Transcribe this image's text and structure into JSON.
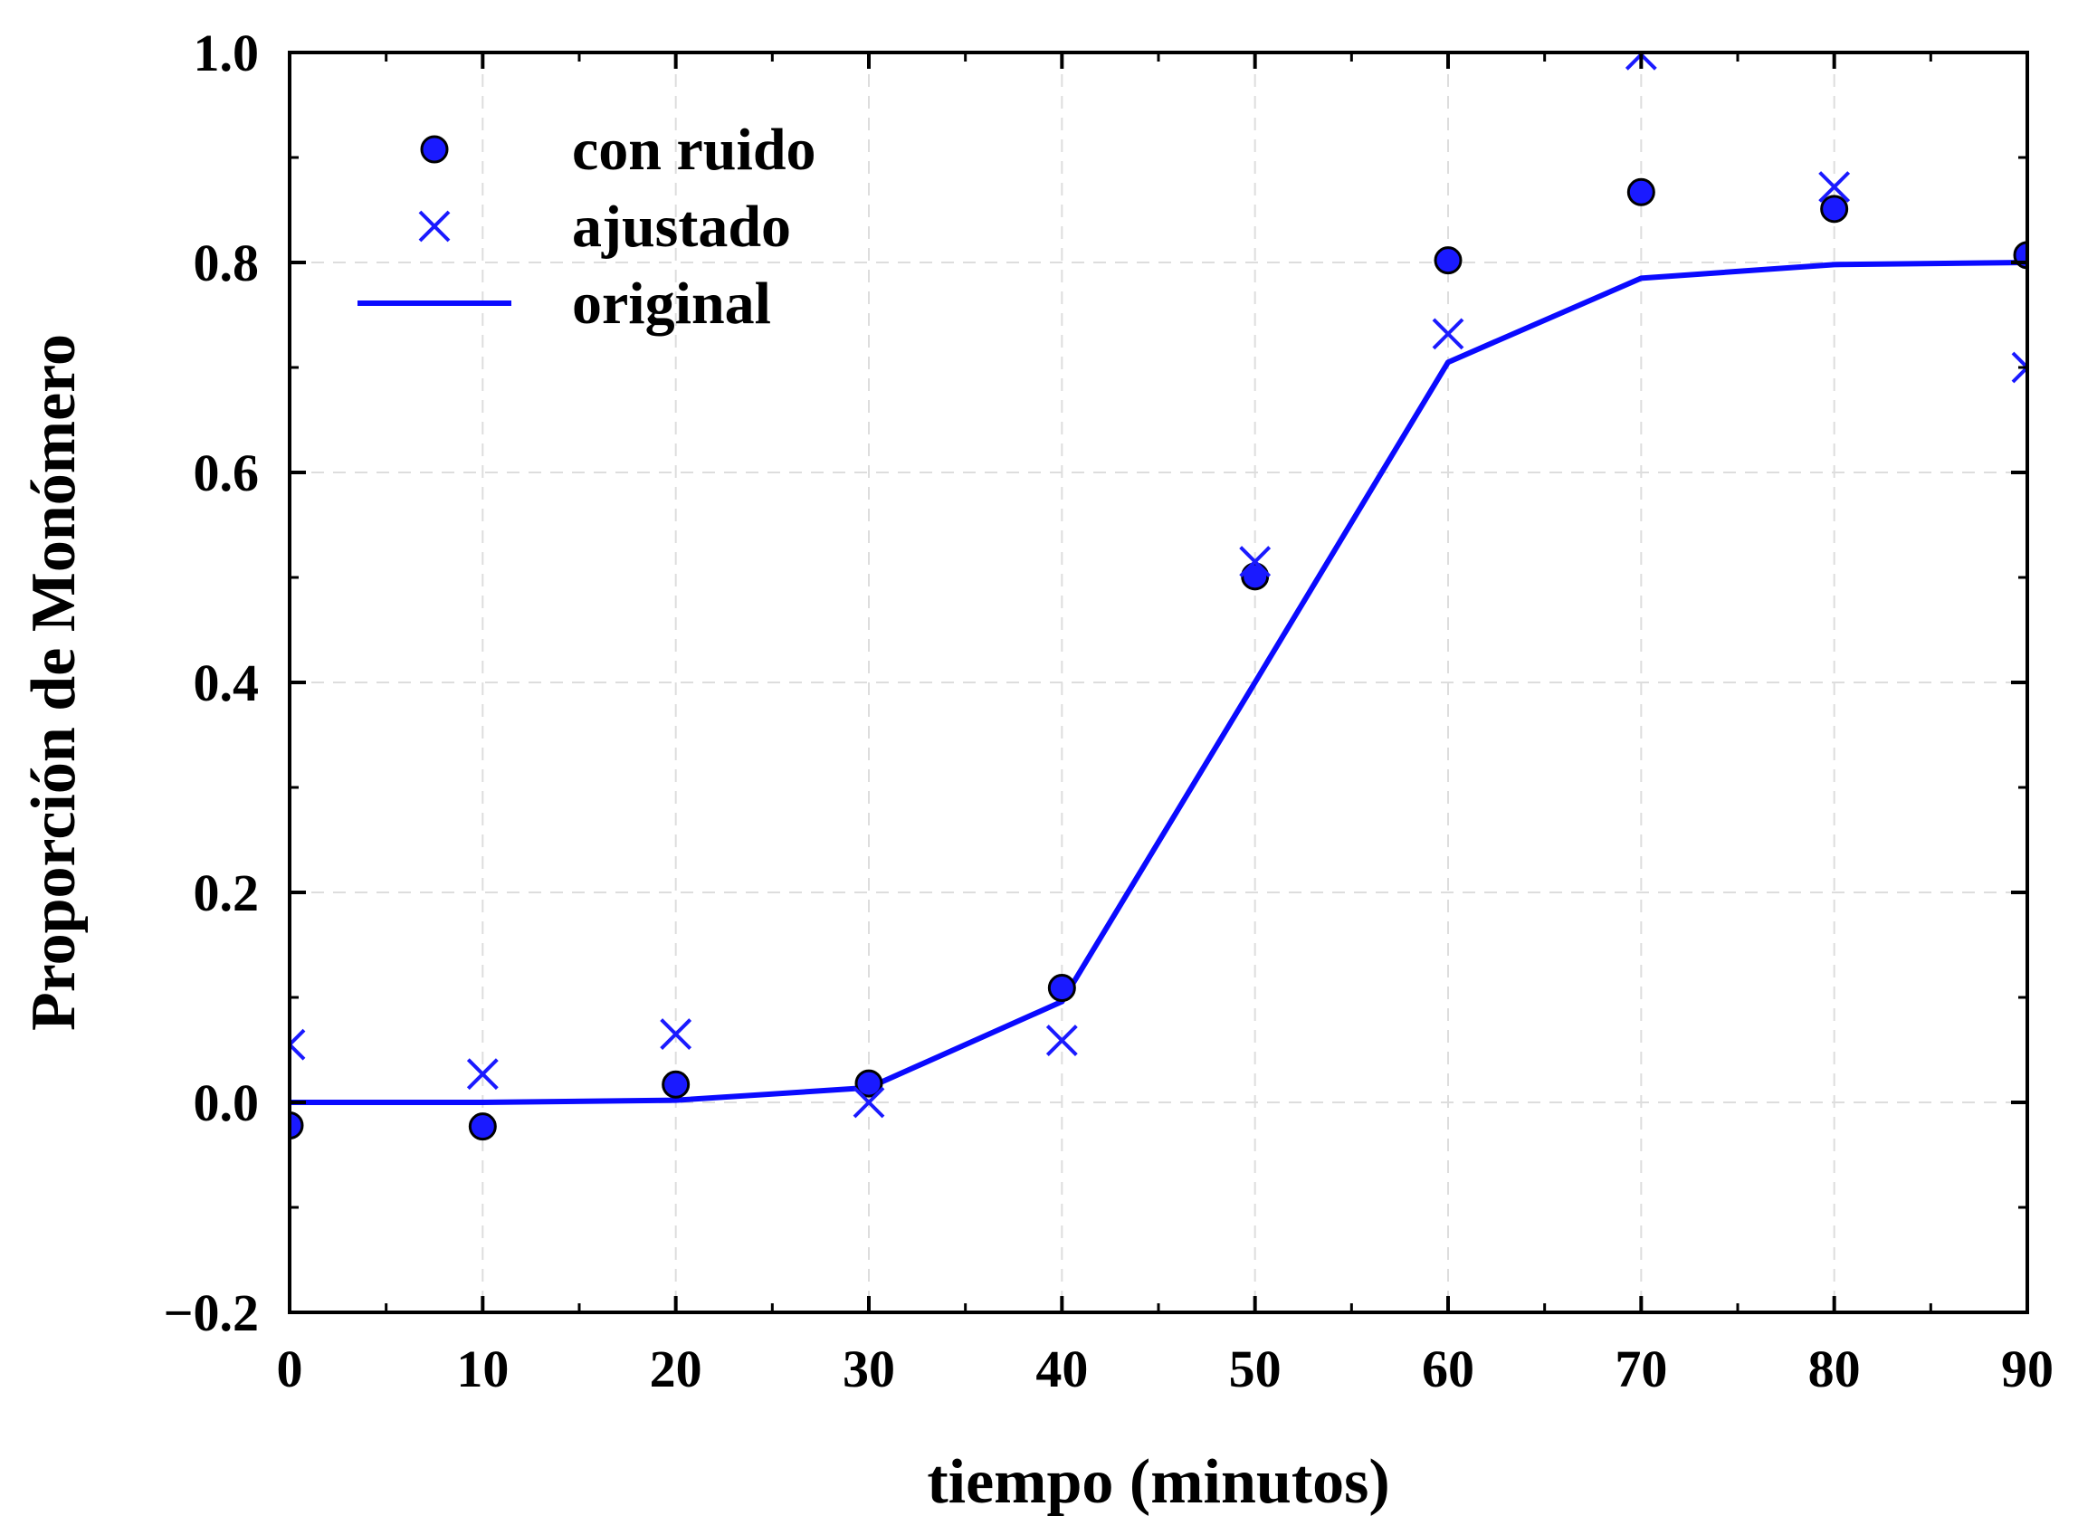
{
  "chart_data": {
    "type": "line",
    "xlabel": "tiempo (minutos)",
    "ylabel": "Proporción de Monómero",
    "xlim": [
      0,
      90
    ],
    "ylim": [
      -0.2,
      1.0
    ],
    "xticks": [
      0,
      10,
      20,
      30,
      40,
      50,
      60,
      70,
      80,
      90
    ],
    "xtick_labels": [
      "0",
      "10",
      "20",
      "30",
      "40",
      "50",
      "60",
      "70",
      "80",
      "90"
    ],
    "yticks": [
      -0.2,
      0.0,
      0.2,
      0.4,
      0.6,
      0.8,
      1.0
    ],
    "ytick_labels": [
      "−0.2",
      "0.0",
      "0.2",
      "0.4",
      "0.6",
      "0.8",
      "1.0"
    ],
    "grid": true,
    "legend_position": "top-left",
    "series": [
      {
        "name": "con ruido",
        "marker": "circle",
        "color": "#1a1aff",
        "x": [
          0,
          10,
          20,
          30,
          40,
          50,
          60,
          70,
          80,
          90
        ],
        "y": [
          -0.022,
          -0.023,
          0.017,
          0.018,
          0.109,
          0.501,
          0.802,
          0.867,
          0.851,
          0.807
        ]
      },
      {
        "name": "ajustado",
        "marker": "x",
        "color": "#1a1aff",
        "x": [
          0,
          10,
          20,
          30,
          40,
          50,
          60,
          70,
          80,
          90
        ],
        "y": [
          0.055,
          0.027,
          0.065,
          0.0,
          0.059,
          0.515,
          0.732,
          0.998,
          0.872,
          0.7
        ]
      },
      {
        "name": "original",
        "marker": "line",
        "color": "#0a0aff",
        "x": [
          0,
          10,
          20,
          30,
          40,
          50,
          60,
          70,
          80,
          90
        ],
        "y": [
          0.0,
          0.0,
          0.002,
          0.014,
          0.096,
          0.4,
          0.705,
          0.785,
          0.798,
          0.8
        ]
      }
    ]
  }
}
